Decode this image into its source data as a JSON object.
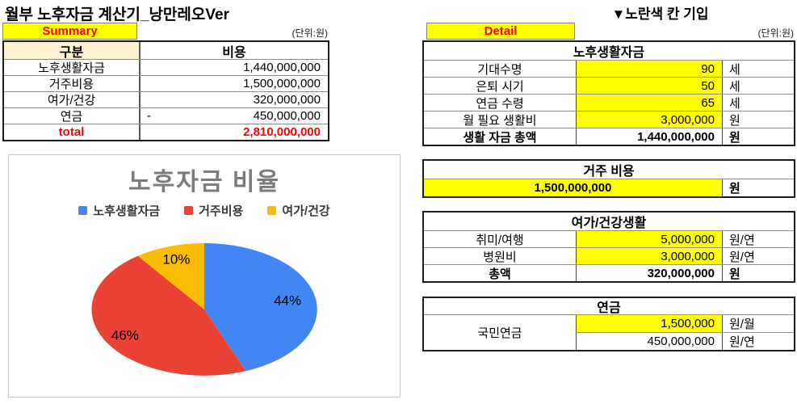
{
  "left": {
    "title": "월부 노후자금 계산기_낭만레오Ver",
    "summary_label": "Summary",
    "unit_note": "(단위:원)",
    "table": {
      "col_headers": [
        "구분",
        "비용"
      ],
      "rows": [
        {
          "label": "노후생활자금",
          "value": "1,440,000,000"
        },
        {
          "label": "거주비용",
          "value": "1,500,000,000"
        },
        {
          "label": "여가/건강",
          "value": "320,000,000"
        },
        {
          "label": "연금",
          "minus": "-",
          "value": "450,000,000"
        }
      ],
      "total_label": "total",
      "total_value": "2,810,000,000"
    }
  },
  "right": {
    "fill_note": "▼노란색 칸 기입",
    "detail_label": "Detail",
    "unit_note": "(단위:원)",
    "life_table": {
      "title": "노후생활자금",
      "rows": [
        {
          "label": "기대수명",
          "value": "90",
          "unit": "세"
        },
        {
          "label": "은퇴 시기",
          "value": "50",
          "unit": "세"
        },
        {
          "label": "연금 수령",
          "value": "65",
          "unit": "세"
        },
        {
          "label": "월 필요 생활비",
          "value": "3,000,000",
          "unit": "원"
        }
      ],
      "total_label": "생활 자금 총액",
      "total_value": "1,440,000,000",
      "total_unit": "원"
    },
    "housing_table": {
      "title": "거주 비용",
      "value": "1,500,000,000",
      "unit": "원"
    },
    "leisure_table": {
      "title": "여가/건강생활",
      "rows": [
        {
          "label": "취미/여행",
          "value": "5,000,000",
          "unit": "원/연"
        },
        {
          "label": "병원비",
          "value": "3,000,000",
          "unit": "원/연"
        }
      ],
      "total_label": "총액",
      "total_value": "320,000,000",
      "total_unit": "원"
    },
    "pension_table": {
      "title": "연금",
      "label": "국민연금",
      "rows": [
        {
          "value": "1,500,000",
          "unit": "원/월"
        },
        {
          "value": "450,000,000",
          "unit": "원/연"
        }
      ]
    }
  },
  "chart_data": {
    "type": "pie",
    "title": "노후자금 비율",
    "labels": [
      "노후생활자금",
      "거주비용",
      "여가/건강"
    ],
    "values": [
      44,
      46,
      10
    ],
    "colors": [
      "#4285F4",
      "#EA4335",
      "#FBBC04"
    ],
    "legend_position": "top",
    "start_angle_deg": 0,
    "direction": "clockwise",
    "data_labels": [
      "44%",
      "46%",
      "10%"
    ]
  },
  "colors": {
    "highlight_yellow": "#FFFF00",
    "accent_red": "#FF0000",
    "header_cream": "#FBF0D0"
  }
}
